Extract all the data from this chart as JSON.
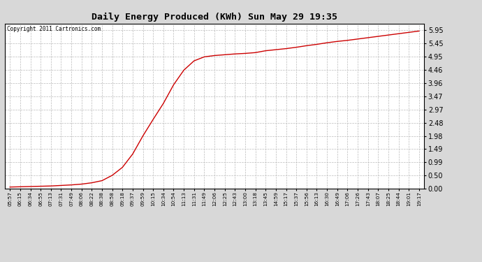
{
  "title": "Daily Energy Produced (KWh) Sun May 29 19:35",
  "copyright_text": "Copyright 2011 Cartronics.com",
  "line_color": "#cc0000",
  "fig_bg": "#d8d8d8",
  "plot_bg": "#ffffff",
  "grid_color": "#bbbbbb",
  "yticks": [
    0.0,
    0.5,
    0.99,
    1.49,
    1.98,
    2.48,
    2.97,
    3.47,
    3.96,
    4.46,
    4.95,
    5.45,
    5.95
  ],
  "ylim": [
    0.0,
    6.2
  ],
  "xtick_labels": [
    "05:57",
    "06:15",
    "06:34",
    "06:55",
    "07:13",
    "07:31",
    "07:49",
    "08:06",
    "08:22",
    "08:38",
    "08:58",
    "09:18",
    "09:37",
    "09:59",
    "10:15",
    "10:34",
    "10:54",
    "11:13",
    "11:31",
    "11:49",
    "12:06",
    "12:25",
    "12:43",
    "13:00",
    "13:18",
    "13:45",
    "14:59",
    "15:17",
    "15:37",
    "15:56",
    "16:13",
    "16:30",
    "16:49",
    "17:06",
    "17:26",
    "17:43",
    "18:07",
    "18:25",
    "18:44",
    "19:01",
    "19:17"
  ],
  "data_y": [
    0.06,
    0.07,
    0.08,
    0.09,
    0.1,
    0.12,
    0.14,
    0.17,
    0.22,
    0.3,
    0.5,
    0.8,
    1.3,
    1.98,
    2.6,
    3.2,
    3.9,
    4.45,
    4.8,
    4.95,
    5.0,
    5.03,
    5.06,
    5.08,
    5.11,
    5.18,
    5.22,
    5.26,
    5.31,
    5.37,
    5.42,
    5.48,
    5.53,
    5.57,
    5.62,
    5.67,
    5.72,
    5.77,
    5.82,
    5.87,
    5.92
  ]
}
